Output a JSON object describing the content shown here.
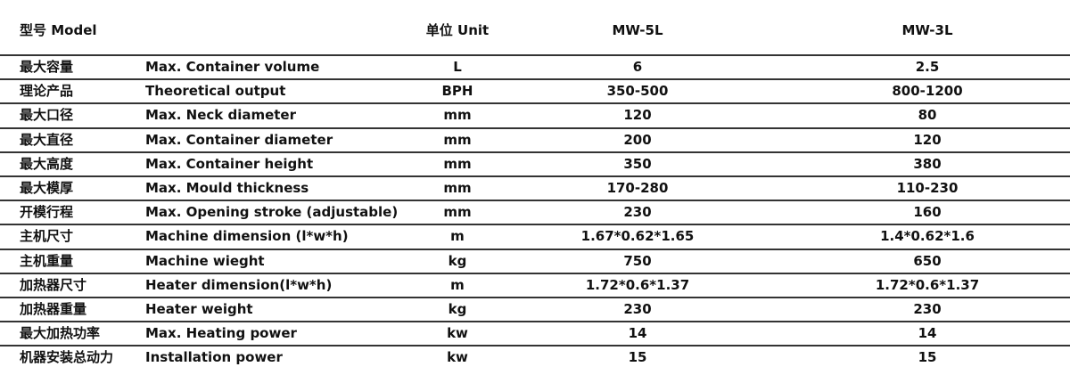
{
  "header": {
    "model": "型号 Model",
    "unit": "单位 Unit",
    "col1": "MW-5L",
    "col2": "MW-3L"
  },
  "rows": [
    {
      "cn": "最大容量",
      "en": "Max. Container volume",
      "unit": "L",
      "mw5l": "6",
      "mw3l": "2.5"
    },
    {
      "cn": "理论产品",
      "en": "Theoretical output",
      "unit": "BPH",
      "mw5l": "350-500",
      "mw3l": "800-1200"
    },
    {
      "cn": "最大口径",
      "en": "Max. Neck diameter",
      "unit": "mm",
      "mw5l": "120",
      "mw3l": "80"
    },
    {
      "cn": "最大直径",
      "en": "Max. Container diameter",
      "unit": "mm",
      "mw5l": "200",
      "mw3l": "120"
    },
    {
      "cn": "最大高度",
      "en": "Max. Container height",
      "unit": "mm",
      "mw5l": "350",
      "mw3l": "380"
    },
    {
      "cn": "最大模厚",
      "en": "Max. Mould thickness",
      "unit": "mm",
      "mw5l": "170-280",
      "mw3l": "110-230"
    },
    {
      "cn": "开模行程",
      "en": "Max. Opening stroke (adjustable)",
      "unit": "mm",
      "mw5l": "230",
      "mw3l": "160"
    },
    {
      "cn": "主机尺寸",
      "en": "Machine dimension (l*w*h)",
      "unit": "m",
      "mw5l": "1.67*0.62*1.65",
      "mw3l": "1.4*0.62*1.6"
    },
    {
      "cn": "主机重量",
      "en": "Machine wieght",
      "unit": "kg",
      "mw5l": "750",
      "mw3l": "650"
    },
    {
      "cn": "加热器尺寸",
      "en": "Heater dimension(l*w*h)",
      "unit": "m",
      "mw5l": "1.72*0.6*1.37",
      "mw3l": "1.72*0.6*1.37"
    },
    {
      "cn": "加热器重量",
      "en": "Heater weight",
      "unit": "kg",
      "mw5l": "230",
      "mw3l": "230"
    },
    {
      "cn": "最大加热功率",
      "en": "Max. Heating power",
      "unit": "kw",
      "mw5l": "14",
      "mw3l": "14"
    },
    {
      "cn": "机器安装总动力",
      "en": "Installation power",
      "unit": "kw",
      "mw5l": "15",
      "mw3l": "15"
    }
  ]
}
